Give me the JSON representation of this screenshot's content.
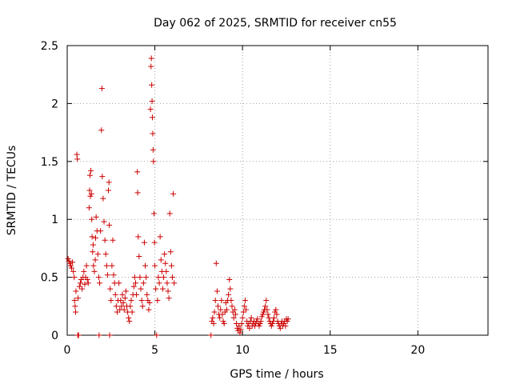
{
  "chart_data": {
    "type": "scatter",
    "title": "Day 062 of 2025, SRMTID for receiver cn55",
    "xlabel": "GPS time / hours",
    "ylabel": "SRMTID / TECUs",
    "xlim": [
      0,
      24
    ],
    "ylim": [
      0,
      2.5
    ],
    "xticks": [
      0,
      5,
      10,
      15,
      20
    ],
    "yticks": [
      0,
      0.5,
      1,
      1.5,
      2,
      2.5
    ],
    "xtick_labels": [
      "0",
      "5",
      "10",
      "15",
      "20"
    ],
    "ytick_labels": [
      "0",
      "0.5",
      "1",
      "1.5",
      "2",
      "2.5"
    ],
    "grid": true,
    "marker": "+",
    "series": [
      {
        "name": "cn55",
        "color": "#cc0000",
        "points": [
          [
            0.05,
            0.66
          ],
          [
            0.1,
            0.64
          ],
          [
            0.15,
            0.62
          ],
          [
            0.2,
            0.6
          ],
          [
            0.25,
            0.58
          ],
          [
            0.3,
            0.63
          ],
          [
            0.35,
            0.55
          ],
          [
            0.4,
            0.5
          ],
          [
            0.42,
            0.3
          ],
          [
            0.45,
            0.25
          ],
          [
            0.48,
            0.2
          ],
          [
            0.5,
            0.38
          ],
          [
            0.55,
            1.56
          ],
          [
            0.58,
            1.52
          ],
          [
            0.6,
            0.0
          ],
          [
            0.62,
            0.32
          ],
          [
            0.65,
            0.0
          ],
          [
            0.7,
            0.42
          ],
          [
            0.75,
            0.45
          ],
          [
            0.8,
            0.48
          ],
          [
            0.85,
            0.4
          ],
          [
            0.9,
            0.5
          ],
          [
            0.95,
            0.55
          ],
          [
            1.0,
            0.44
          ],
          [
            1.05,
            0.5
          ],
          [
            1.1,
            0.6
          ],
          [
            1.15,
            0.48
          ],
          [
            1.2,
            0.45
          ],
          [
            1.25,
            1.1
          ],
          [
            1.28,
            1.25
          ],
          [
            1.3,
            1.38
          ],
          [
            1.32,
            1.2
          ],
          [
            1.35,
            1.42
          ],
          [
            1.38,
            1.22
          ],
          [
            1.4,
            1.0
          ],
          [
            1.42,
            0.85
          ],
          [
            1.45,
            0.72
          ],
          [
            1.48,
            0.78
          ],
          [
            1.5,
            0.6
          ],
          [
            1.55,
            0.55
          ],
          [
            1.6,
            0.65
          ],
          [
            1.62,
            0.84
          ],
          [
            1.65,
            1.02
          ],
          [
            1.7,
            0.9
          ],
          [
            1.75,
            0.7
          ],
          [
            1.8,
            0.5
          ],
          [
            1.82,
            0.0
          ],
          [
            1.85,
            0.45
          ],
          [
            1.9,
            0.9
          ],
          [
            1.95,
            1.77
          ],
          [
            1.98,
            2.13
          ],
          [
            2.0,
            1.37
          ],
          [
            2.05,
            1.18
          ],
          [
            2.1,
            0.98
          ],
          [
            2.15,
            0.82
          ],
          [
            2.2,
            0.7
          ],
          [
            2.25,
            0.6
          ],
          [
            2.3,
            0.52
          ],
          [
            2.35,
            1.25
          ],
          [
            2.38,
            1.32
          ],
          [
            2.4,
            0.95
          ],
          [
            2.42,
            0.0
          ],
          [
            2.45,
            0.4
          ],
          [
            2.5,
            0.3
          ],
          [
            2.55,
            0.6
          ],
          [
            2.6,
            0.82
          ],
          [
            2.65,
            0.52
          ],
          [
            2.7,
            0.45
          ],
          [
            2.75,
            0.35
          ],
          [
            2.8,
            0.25
          ],
          [
            2.85,
            0.2
          ],
          [
            2.9,
            0.3
          ],
          [
            2.95,
            0.45
          ],
          [
            3.0,
            0.22
          ],
          [
            3.05,
            0.3
          ],
          [
            3.1,
            0.25
          ],
          [
            3.15,
            0.35
          ],
          [
            3.2,
            0.28
          ],
          [
            3.25,
            0.22
          ],
          [
            3.3,
            0.32
          ],
          [
            3.35,
            0.38
          ],
          [
            3.4,
            0.25
          ],
          [
            3.45,
            0.2
          ],
          [
            3.5,
            0.15
          ],
          [
            3.55,
            0.12
          ],
          [
            3.6,
            0.25
          ],
          [
            3.65,
            0.3
          ],
          [
            3.7,
            0.2
          ],
          [
            3.75,
            0.35
          ],
          [
            3.8,
            0.42
          ],
          [
            3.85,
            0.5
          ],
          [
            3.9,
            0.45
          ],
          [
            3.95,
            0.35
          ],
          [
            4.0,
            1.41
          ],
          [
            4.02,
            1.23
          ],
          [
            4.05,
            0.85
          ],
          [
            4.1,
            0.68
          ],
          [
            4.15,
            0.5
          ],
          [
            4.2,
            0.4
          ],
          [
            4.25,
            0.3
          ],
          [
            4.3,
            0.25
          ],
          [
            4.35,
            0.45
          ],
          [
            4.4,
            0.8
          ],
          [
            4.45,
            0.6
          ],
          [
            4.5,
            0.5
          ],
          [
            4.55,
            0.35
          ],
          [
            4.6,
            0.3
          ],
          [
            4.65,
            0.22
          ],
          [
            4.7,
            0.28
          ],
          [
            4.75,
            1.95
          ],
          [
            4.78,
            2.32
          ],
          [
            4.8,
            2.39
          ],
          [
            4.82,
            2.16
          ],
          [
            4.84,
            2.02
          ],
          [
            4.86,
            1.88
          ],
          [
            4.88,
            1.74
          ],
          [
            4.9,
            1.6
          ],
          [
            4.92,
            1.5
          ],
          [
            4.95,
            1.05
          ],
          [
            4.98,
            0.8
          ],
          [
            5.0,
            0.6
          ],
          [
            5.05,
            0.4
          ],
          [
            5.1,
            0.0
          ],
          [
            5.15,
            0.3
          ],
          [
            5.2,
            0.5
          ],
          [
            5.25,
            0.45
          ],
          [
            5.3,
            0.85
          ],
          [
            5.35,
            0.65
          ],
          [
            5.4,
            0.55
          ],
          [
            5.45,
            0.4
          ],
          [
            5.5,
            0.5
          ],
          [
            5.55,
            0.7
          ],
          [
            5.6,
            0.62
          ],
          [
            5.65,
            0.55
          ],
          [
            5.7,
            0.45
          ],
          [
            5.75,
            0.38
          ],
          [
            5.8,
            0.32
          ],
          [
            5.85,
            1.05
          ],
          [
            5.9,
            0.72
          ],
          [
            5.95,
            0.6
          ],
          [
            6.0,
            0.5
          ],
          [
            6.05,
            1.22
          ],
          [
            6.1,
            0.45
          ],
          [
            8.2,
            0.0
          ],
          [
            8.25,
            0.12
          ],
          [
            8.3,
            0.15
          ],
          [
            8.35,
            0.1
          ],
          [
            8.4,
            0.2
          ],
          [
            8.45,
            0.3
          ],
          [
            8.5,
            0.62
          ],
          [
            8.55,
            0.38
          ],
          [
            8.6,
            0.25
          ],
          [
            8.65,
            0.18
          ],
          [
            8.7,
            0.15
          ],
          [
            8.75,
            0.22
          ],
          [
            8.8,
            0.3
          ],
          [
            8.85,
            0.18
          ],
          [
            8.9,
            0.12
          ],
          [
            8.95,
            0.1
          ],
          [
            9.0,
            0.2
          ],
          [
            9.05,
            0.28
          ],
          [
            9.1,
            0.22
          ],
          [
            9.15,
            0.3
          ],
          [
            9.2,
            0.35
          ],
          [
            9.25,
            0.48
          ],
          [
            9.3,
            0.4
          ],
          [
            9.35,
            0.3
          ],
          [
            9.4,
            0.25
          ],
          [
            9.45,
            0.2
          ],
          [
            9.5,
            0.15
          ],
          [
            9.55,
            0.22
          ],
          [
            9.6,
            0.18
          ],
          [
            9.65,
            0.1
          ],
          [
            9.7,
            0.06
          ],
          [
            9.75,
            0.04
          ],
          [
            9.8,
            0.08
          ],
          [
            9.85,
            0.02
          ],
          [
            9.9,
            0.05
          ],
          [
            9.95,
            0.1
          ],
          [
            10.0,
            0.15
          ],
          [
            10.05,
            0.2
          ],
          [
            10.1,
            0.25
          ],
          [
            10.15,
            0.3
          ],
          [
            10.2,
            0.22
          ],
          [
            10.25,
            0.12
          ],
          [
            10.3,
            0.08
          ],
          [
            10.35,
            0.1
          ],
          [
            10.4,
            0.06
          ],
          [
            10.45,
            0.12
          ],
          [
            10.5,
            0.15
          ],
          [
            10.55,
            0.08
          ],
          [
            10.6,
            0.1
          ],
          [
            10.65,
            0.12
          ],
          [
            10.7,
            0.08
          ],
          [
            10.75,
            0.1
          ],
          [
            10.8,
            0.12
          ],
          [
            10.85,
            0.14
          ],
          [
            10.9,
            0.1
          ],
          [
            10.95,
            0.08
          ],
          [
            11.0,
            0.1
          ],
          [
            11.05,
            0.12
          ],
          [
            11.1,
            0.16
          ],
          [
            11.15,
            0.18
          ],
          [
            11.2,
            0.2
          ],
          [
            11.25,
            0.22
          ],
          [
            11.3,
            0.25
          ],
          [
            11.35,
            0.3
          ],
          [
            11.4,
            0.22
          ],
          [
            11.45,
            0.18
          ],
          [
            11.5,
            0.15
          ],
          [
            11.55,
            0.12
          ],
          [
            11.6,
            0.1
          ],
          [
            11.65,
            0.08
          ],
          [
            11.7,
            0.1
          ],
          [
            11.75,
            0.12
          ],
          [
            11.8,
            0.15
          ],
          [
            11.85,
            0.2
          ],
          [
            11.9,
            0.22
          ],
          [
            11.95,
            0.18
          ],
          [
            12.0,
            0.12
          ],
          [
            12.05,
            0.1
          ],
          [
            12.1,
            0.08
          ],
          [
            12.15,
            0.06
          ],
          [
            12.2,
            0.1
          ],
          [
            12.25,
            0.12
          ],
          [
            12.3,
            0.08
          ],
          [
            12.35,
            0.1
          ],
          [
            12.4,
            0.12
          ],
          [
            12.45,
            0.08
          ],
          [
            12.5,
            0.14
          ],
          [
            12.55,
            0.12
          ],
          [
            12.6,
            0.14
          ]
        ]
      }
    ]
  }
}
